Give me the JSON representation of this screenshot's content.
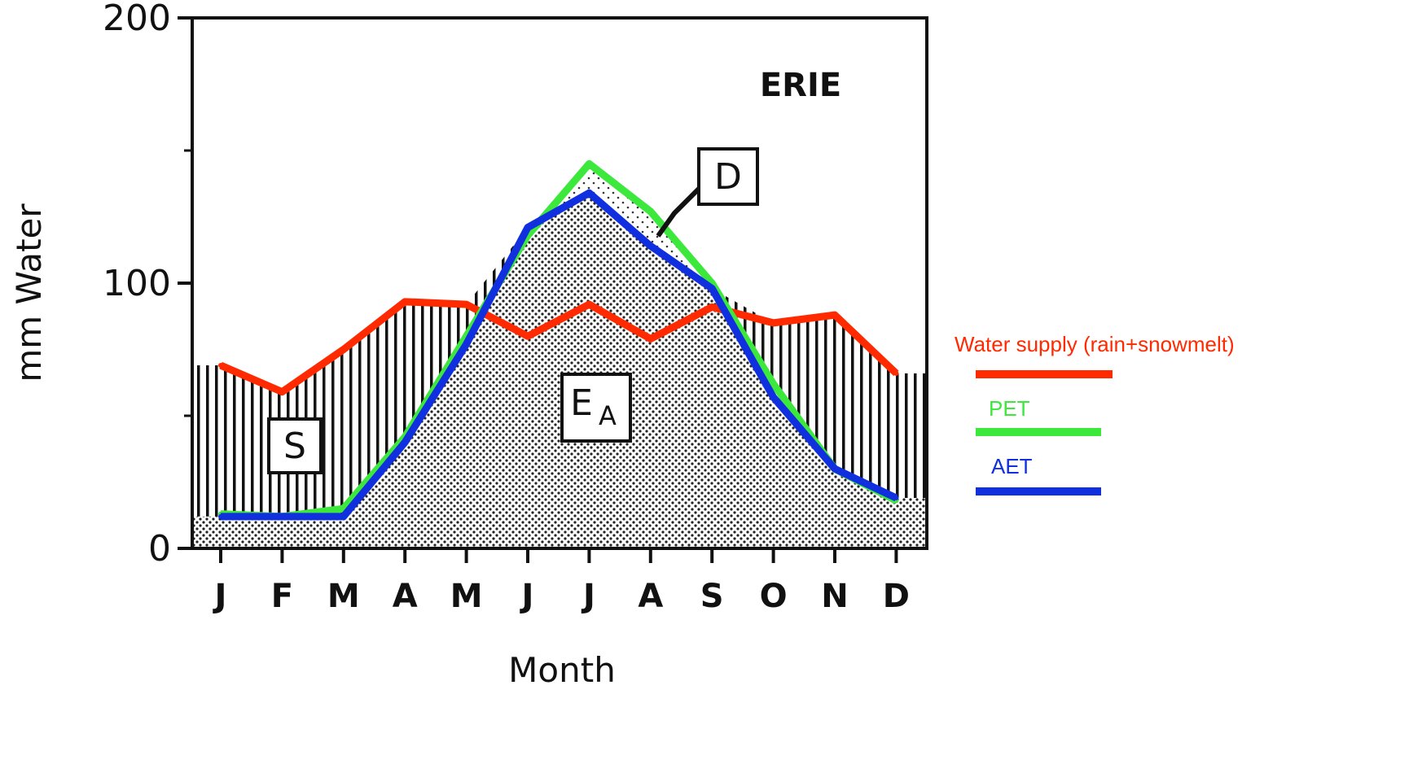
{
  "chart_data": {
    "type": "line",
    "title": "ERIE",
    "xlabel": "Month",
    "ylabel": "mm Water",
    "categories": [
      "J",
      "F",
      "M",
      "A",
      "M",
      "J",
      "J",
      "A",
      "S",
      "O",
      "N",
      "D"
    ],
    "ylim": [
      0,
      200
    ],
    "yticks": [
      "0",
      "100",
      "200"
    ],
    "grid": false,
    "legend_position": "right",
    "series": [
      {
        "name": "Water supply (rain+snowmelt)",
        "color": "#ff2a00",
        "values": [
          69,
          59,
          75,
          93,
          92,
          80,
          92,
          79,
          91,
          85,
          88,
          66
        ]
      },
      {
        "name": "PET",
        "color": "#3de83d",
        "values": [
          13,
          12,
          15,
          42,
          80,
          118,
          145,
          127,
          100,
          62,
          30,
          18
        ]
      },
      {
        "name": "AET",
        "color": "#1030e0",
        "values": [
          12,
          12,
          12,
          40,
          77,
          121,
          134,
          114,
          98,
          57,
          30,
          19
        ]
      }
    ],
    "regions": {
      "S": "S",
      "EA_main": "E",
      "EA_sub": "A",
      "D": "D"
    }
  }
}
